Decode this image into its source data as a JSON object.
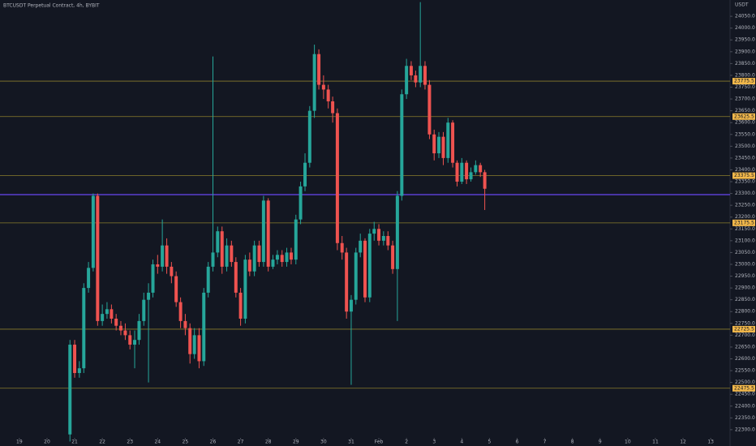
{
  "chart_data": {
    "type": "candlestick",
    "title": "BTCUSDT Perpetual Contract, 4h, BYBIT",
    "y_axis_label": "USDT",
    "x": [
      20.83,
      21,
      21.17,
      21.33,
      21.5,
      21.67,
      21.83,
      22,
      22.17,
      22.33,
      22.5,
      22.67,
      22.83,
      23,
      23.17,
      23.33,
      23.5,
      23.67,
      23.83,
      24,
      24.17,
      24.33,
      24.5,
      24.67,
      24.83,
      25,
      25.17,
      25.33,
      25.5,
      25.67,
      25.83,
      26,
      26.17,
      26.33,
      26.5,
      26.67,
      26.83,
      27,
      27.17,
      27.33,
      27.5,
      27.67,
      27.83,
      28,
      28.17,
      28.33,
      28.5,
      28.67,
      28.83,
      29,
      29.17,
      29.33,
      29.5,
      29.67,
      29.83,
      30,
      30.17,
      30.33,
      30.5,
      30.67,
      30.83,
      31,
      31.17,
      31.33,
      31.5,
      31.67,
      31.83,
      32,
      32.17,
      32.33,
      32.5,
      32.67,
      32.83,
      33,
      33.17,
      33.33,
      33.5,
      33.67,
      33.83,
      34,
      34.17,
      34.33,
      34.5,
      34.67,
      34.83,
      35,
      35.17,
      35.33,
      35.5,
      35.67,
      35.83
    ],
    "open": [
      22280,
      22660,
      22540,
      22560,
      22900,
      22985,
      23290,
      22760,
      22790,
      22810,
      22770,
      22740,
      22720,
      22700,
      22660,
      22680,
      22760,
      22850,
      22880,
      23000,
      22990,
      23080,
      22990,
      22950,
      22840,
      22760,
      22730,
      22620,
      22700,
      22590,
      22880,
      22990,
      23050,
      23140,
      22990,
      23080,
      23010,
      22880,
      22770,
      23020,
      22970,
      23080,
      23010,
      23270,
      22990,
      23020,
      23040,
      23010,
      23050,
      23020,
      23190,
      23330,
      23430,
      23650,
      23890,
      23760,
      23740,
      23690,
      23640,
      23090,
      23050,
      22800,
      22850,
      23050,
      23100,
      22860,
      23130,
      23150,
      23100,
      23120,
      23080,
      22980,
      23290,
      23720,
      23840,
      23800,
      23770,
      23840,
      23760,
      23550,
      23470,
      23540,
      23450,
      23600,
      23430,
      23350,
      23430,
      23360,
      23390,
      23420,
      23390
    ],
    "high": [
      22680,
      22680,
      22590,
      22920,
      23010,
      23300,
      23300,
      22830,
      22840,
      22830,
      22790,
      22760,
      22750,
      22720,
      22720,
      22790,
      22880,
      22920,
      23020,
      23040,
      23190,
      23110,
      23010,
      22970,
      22860,
      22790,
      22750,
      22730,
      22730,
      22900,
      23010,
      23880,
      23160,
      23160,
      23110,
      23100,
      23030,
      22900,
      23040,
      23050,
      23100,
      23100,
      23290,
      23280,
      23040,
      23060,
      23060,
      23070,
      23070,
      23210,
      23350,
      23470,
      23670,
      23930,
      23910,
      23800,
      23760,
      23710,
      23660,
      23120,
      23070,
      22870,
      23070,
      23130,
      23110,
      23150,
      23180,
      23170,
      23140,
      23140,
      23100,
      23310,
      23740,
      23870,
      23860,
      23820,
      24110,
      23860,
      23780,
      23570,
      23560,
      23560,
      23620,
      23610,
      23440,
      23450,
      23440,
      23410,
      23440,
      23430,
      23400
    ],
    "low": [
      22250,
      22520,
      22520,
      22540,
      22880,
      22970,
      22740,
      22740,
      22770,
      22750,
      22720,
      22700,
      22680,
      22640,
      22560,
      22660,
      22740,
      22500,
      22860,
      22960,
      22970,
      22960,
      22920,
      22820,
      22730,
      22700,
      22580,
      22600,
      22560,
      22570,
      22860,
      22970,
      23030,
      22960,
      22970,
      22990,
      22860,
      22740,
      22750,
      22950,
      22950,
      22990,
      22990,
      22970,
      22980,
      23000,
      22990,
      22990,
      23000,
      23000,
      23170,
      23310,
      23410,
      23620,
      23740,
      23700,
      23660,
      23600,
      23060,
      23020,
      22770,
      22490,
      22830,
      23030,
      22840,
      22840,
      23100,
      23080,
      23080,
      23060,
      22960,
      22760,
      23270,
      23700,
      23780,
      23750,
      23750,
      23740,
      23530,
      23440,
      23450,
      23420,
      23430,
      23410,
      23330,
      23340,
      23340,
      23350,
      23380,
      23370,
      23230
    ],
    "close": [
      22660,
      22540,
      22560,
      22900,
      22985,
      23290,
      22760,
      22790,
      22810,
      22770,
      22740,
      22720,
      22700,
      22660,
      22680,
      22760,
      22850,
      22880,
      23000,
      22990,
      23080,
      22990,
      22950,
      22840,
      22760,
      22730,
      22620,
      22700,
      22590,
      22880,
      22990,
      23050,
      23140,
      22990,
      23080,
      23010,
      22880,
      22770,
      23020,
      22970,
      23080,
      23010,
      23270,
      22990,
      23020,
      23040,
      23010,
      23050,
      23020,
      23190,
      23330,
      23430,
      23650,
      23890,
      23760,
      23740,
      23690,
      23640,
      23090,
      23050,
      22800,
      22850,
      23050,
      23100,
      22860,
      23130,
      23150,
      23100,
      23120,
      23080,
      22980,
      23290,
      23720,
      23840,
      23800,
      23770,
      23840,
      23760,
      23550,
      23470,
      23540,
      23450,
      23600,
      23430,
      23350,
      23430,
      23360,
      23390,
      23420,
      23390,
      23320
    ],
    "up_color": "#26a69a",
    "down_color": "#ef5350",
    "xlim": [
      18.3,
      44.7
    ],
    "ylim": [
      22231,
      24119
    ],
    "xticks": [
      19,
      20,
      21,
      22,
      23,
      24,
      25,
      26,
      27,
      28,
      29,
      30,
      31,
      {
        "value": 32,
        "label": "Feb"
      },
      {
        "value": 33,
        "label": "2"
      },
      {
        "value": 34,
        "label": "3"
      },
      {
        "value": 35,
        "label": "4"
      },
      {
        "value": 36,
        "label": "5"
      },
      {
        "value": 37,
        "label": "6"
      },
      {
        "value": 38,
        "label": "7"
      },
      {
        "value": 39,
        "label": "8"
      },
      {
        "value": 40,
        "label": "9"
      },
      {
        "value": 41,
        "label": "10"
      },
      {
        "value": 42,
        "label": "11"
      },
      {
        "value": 43,
        "label": "12"
      },
      {
        "value": 44,
        "label": "13"
      }
    ],
    "yticks": [
      {
        "value": 22300,
        "label": "22300.0"
      },
      {
        "value": 22350,
        "label": "22350.0"
      },
      {
        "value": 22400,
        "label": "22400.0"
      },
      {
        "value": 22450,
        "label": "22450.0"
      },
      {
        "value": 22500,
        "label": "22500.0"
      },
      {
        "value": 22550,
        "label": "22550.0"
      },
      {
        "value": 22600,
        "label": "22600.0"
      },
      {
        "value": 22650,
        "label": "22650.0"
      },
      {
        "value": 22700,
        "label": "22700.0"
      },
      {
        "value": 22750,
        "label": "22750.0"
      },
      {
        "value": 22800,
        "label": "22800.0"
      },
      {
        "value": 22850,
        "label": "22850.0"
      },
      {
        "value": 22900,
        "label": "22900.0"
      },
      {
        "value": 22950,
        "label": "22950.0"
      },
      {
        "value": 23000,
        "label": "23000.0"
      },
      {
        "value": 23050,
        "label": "23050.0"
      },
      {
        "value": 23100,
        "label": "23100.0"
      },
      {
        "value": 23150,
        "label": "23150.0"
      },
      {
        "value": 23200,
        "label": "23200.0"
      },
      {
        "value": 23250,
        "label": "23250.0"
      },
      {
        "value": 23300,
        "label": "23300.0"
      },
      {
        "value": 23350,
        "label": "23350.0"
      },
      {
        "value": 23400,
        "label": "23400.0"
      },
      {
        "value": 23450,
        "label": "23450.0"
      },
      {
        "value": 23500,
        "label": "23500.0"
      },
      {
        "value": 23550,
        "label": "23550.0"
      },
      {
        "value": 23600,
        "label": "23600.0"
      },
      {
        "value": 23650,
        "label": "23650.0"
      },
      {
        "value": 23700,
        "label": "23700.0"
      },
      {
        "value": 23750,
        "label": "23750.0"
      },
      {
        "value": 23800,
        "label": "23800.0"
      },
      {
        "value": 23850,
        "label": "23850.0"
      },
      {
        "value": 23900,
        "label": "23900.0"
      },
      {
        "value": 23950,
        "label": "23950.0"
      },
      {
        "value": 24000,
        "label": "24000.0"
      },
      {
        "value": 24050,
        "label": "24050.0"
      }
    ],
    "levels": [
      23775.5,
      23625.5,
      23375.5,
      23175.5,
      22725.5,
      22475.5
    ],
    "level_color": "#8a7d2c",
    "level_label_color": "#f2b84b",
    "price_line": 23295,
    "price_line_color": "#5b3fd0"
  }
}
